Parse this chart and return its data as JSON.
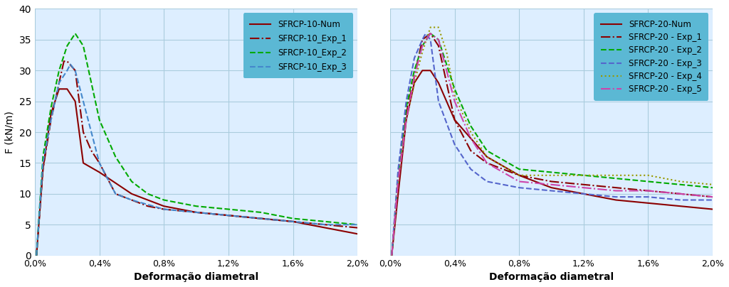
{
  "fig_width": 10.24,
  "fig_height": 4.04,
  "bg_color": "#ddeeff",
  "grid_color": "#aaccdd",
  "ylabel": "F (kN/m)",
  "xlabel": "Deformação diametral",
  "xlim": [
    0,
    0.02
  ],
  "ylim_left": [
    0,
    40
  ],
  "ylim_right": [
    0,
    40
  ],
  "xticks": [
    0.0,
    0.004,
    0.008,
    0.012,
    0.016,
    0.02
  ],
  "xticklabels": [
    "0,0%",
    "0,4%",
    "0,8%",
    "1,2%",
    "1,6%",
    "2,0%"
  ],
  "yticks_left": [
    0,
    5,
    10,
    15,
    20,
    25,
    30,
    35,
    40
  ],
  "yticks_right": [
    0,
    5,
    10,
    15,
    20,
    25,
    30,
    35,
    40
  ],
  "legend_bg": "#5bb8d4",
  "color_num": "#8B0000",
  "color_exp1": "#8B0000",
  "color_exp2_l": "#00AA00",
  "color_exp3_l": "#4488CC",
  "color_exp2_r": "#00AA00",
  "color_exp3_r": "#5566CC",
  "color_exp4_r": "#999900",
  "color_exp5_r": "#CC44AA",
  "left_labels": [
    "SFRCP-10-Num",
    "SFRCP-10_Exp_1",
    "SFRCP-10_Exp_2",
    "SFRCP-10_Exp_3"
  ],
  "right_labels": [
    "SFRCP-20-Num",
    "SFRCP-20 - Exp_1",
    "SFRCP-20 - Exp_2",
    "SFRCP-20 - Exp_3",
    "SFRCP-20 - Exp_4",
    "SFRCP-20 - Exp_5"
  ]
}
